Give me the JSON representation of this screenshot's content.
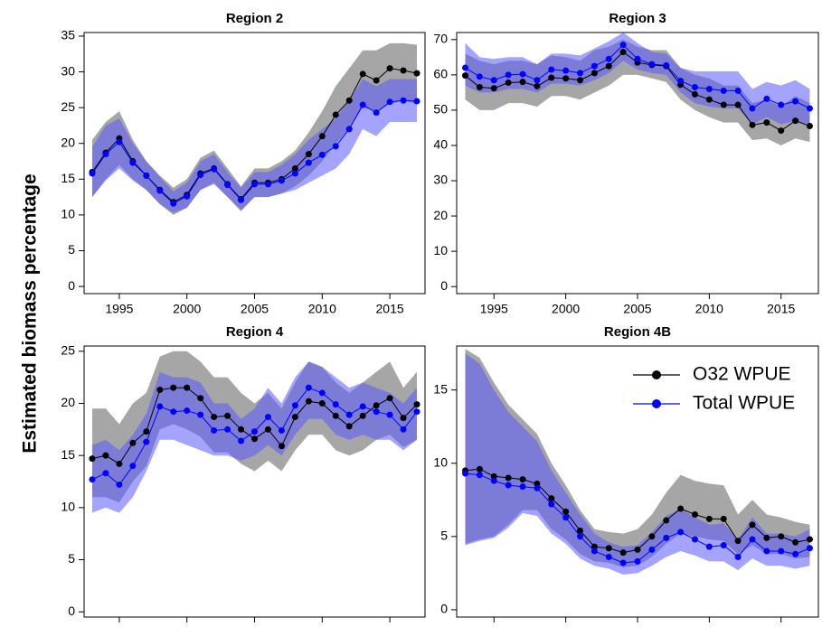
{
  "ylabel": "Estimated biomass percentage",
  "chart_data": [
    {
      "type": "line",
      "title": "Region 2",
      "x": [
        1993,
        1994,
        1995,
        1996,
        1997,
        1998,
        1999,
        2000,
        2001,
        2002,
        2003,
        2004,
        2005,
        2006,
        2007,
        2008,
        2009,
        2010,
        2011,
        2012,
        2013,
        2014,
        2015,
        2016,
        2017
      ],
      "xlim": [
        1992.4,
        2017.6
      ],
      "xticks": [
        1995,
        2000,
        2005,
        2010,
        2015
      ],
      "ylim": [
        -1,
        35.5
      ],
      "yticks": [
        0,
        5,
        10,
        15,
        20,
        25,
        30,
        35
      ],
      "series": [
        {
          "name": "O32 WPUE",
          "color": "#000000",
          "band_color": "#a6a6a6",
          "values": [
            16,
            18.7,
            20.7,
            17.5,
            15.5,
            13.5,
            11.8,
            12.8,
            15.8,
            16.5,
            14.3,
            12.2,
            14.5,
            14.5,
            15,
            16.5,
            18.5,
            21,
            24,
            26,
            29.7,
            28.8,
            30.5,
            30.2,
            29.8
          ],
          "lower": [
            12.5,
            15,
            17,
            15,
            13.5,
            11.5,
            10,
            11,
            13.5,
            14.5,
            12.5,
            10.5,
            12.5,
            12.5,
            13,
            14,
            15.5,
            17.5,
            20,
            22,
            25,
            24.5,
            25.5,
            26,
            25.5
          ],
          "upper": [
            20.5,
            23,
            24.5,
            20.5,
            17.5,
            15.5,
            13.8,
            15,
            18,
            19,
            16.5,
            14,
            16.5,
            16.5,
            17.5,
            19,
            21.5,
            24.5,
            28,
            30.5,
            33,
            33,
            34,
            34,
            33.8
          ]
        },
        {
          "name": "Total WPUE",
          "color": "#0000ff",
          "band_color": "#5a5aff",
          "values": [
            15.8,
            18.5,
            20.2,
            17.3,
            15.5,
            13.4,
            11.6,
            12.6,
            15.6,
            16.4,
            14.2,
            12.1,
            14.3,
            14.3,
            14.8,
            15.8,
            17.3,
            18.4,
            19.6,
            22,
            25.4,
            24.3,
            25.8,
            26,
            25.9
          ],
          "lower": [
            12.5,
            14.8,
            16.5,
            14.8,
            13.5,
            11.5,
            10.3,
            11,
            13.5,
            14.3,
            12.5,
            10.7,
            12.5,
            12.5,
            13,
            13.5,
            14.5,
            15.5,
            16.5,
            18.5,
            22,
            21,
            23,
            23,
            23
          ],
          "upper": [
            19.5,
            22.5,
            23.5,
            20,
            17.5,
            15.3,
            13.3,
            14.5,
            17.5,
            18.5,
            16,
            13.8,
            16,
            16,
            17,
            18.5,
            20.5,
            22,
            23.5,
            26,
            29,
            28,
            29,
            29,
            29
          ]
        }
      ]
    },
    {
      "type": "line",
      "title": "Region 3",
      "x": [
        1993,
        1994,
        1995,
        1996,
        1997,
        1998,
        1999,
        2000,
        2001,
        2002,
        2003,
        2004,
        2005,
        2006,
        2007,
        2008,
        2009,
        2010,
        2011,
        2012,
        2013,
        2014,
        2015,
        2016,
        2017
      ],
      "xlim": [
        1992.4,
        2017.6
      ],
      "xticks": [
        1995,
        2000,
        2005,
        2010,
        2015
      ],
      "ylim": [
        -2,
        72
      ],
      "yticks": [
        0,
        10,
        20,
        30,
        40,
        50,
        60,
        70
      ],
      "series": [
        {
          "name": "O32 WPUE",
          "color": "#000000",
          "band_color": "#a6a6a6",
          "values": [
            59.8,
            56.5,
            56.2,
            57.8,
            58,
            56.8,
            59.2,
            59,
            58.5,
            60.5,
            62.5,
            66.5,
            63.5,
            62.8,
            62.5,
            57.2,
            54.5,
            53,
            51.5,
            51.5,
            45.8,
            46.5,
            44.2,
            47,
            45.5
          ],
          "lower": [
            53,
            50,
            50,
            52,
            52,
            51,
            54,
            54,
            53,
            55,
            57,
            60,
            60,
            59,
            58,
            53,
            50,
            48,
            46.5,
            46.5,
            41.5,
            42,
            40,
            42,
            41
          ],
          "upper": [
            66,
            64,
            63,
            64,
            64,
            63,
            65.5,
            65,
            64,
            67,
            68,
            70,
            68,
            67,
            67,
            62,
            60,
            59,
            57,
            57,
            52,
            53,
            51,
            54,
            52
          ]
        },
        {
          "name": "Total WPUE",
          "color": "#0000ff",
          "band_color": "#5a5aff",
          "values": [
            62,
            59.5,
            58.5,
            60,
            60.2,
            58.5,
            61.5,
            61.2,
            60.5,
            62.5,
            64.5,
            68.5,
            64.5,
            63,
            62.7,
            58.3,
            56.5,
            56,
            55.5,
            55.5,
            50.5,
            53.2,
            51.5,
            52.5,
            50.5
          ],
          "lower": [
            57,
            55,
            55,
            56,
            56,
            55,
            57.5,
            57.5,
            57,
            58.5,
            60.5,
            64,
            61.5,
            60.5,
            60,
            55,
            52,
            51,
            50.5,
            50.5,
            46,
            48,
            46,
            47,
            46
          ],
          "upper": [
            69,
            65,
            64.5,
            65,
            65,
            63,
            66,
            66,
            65.5,
            67.5,
            69.5,
            72,
            69,
            66.5,
            66,
            62,
            61,
            61,
            61,
            61,
            56,
            58,
            57,
            58.5,
            56
          ]
        }
      ]
    },
    {
      "type": "line",
      "title": "Region 4",
      "x": [
        1993,
        1994,
        1995,
        1996,
        1997,
        1998,
        1999,
        2000,
        2001,
        2002,
        2003,
        2004,
        2005,
        2006,
        2007,
        2008,
        2009,
        2010,
        2011,
        2012,
        2013,
        2014,
        2015,
        2016,
        2017
      ],
      "xlim": [
        1992.4,
        2017.6
      ],
      "xticks": [
        1995,
        2000,
        2005,
        2010,
        2015
      ],
      "ylim": [
        -0.5,
        25.5
      ],
      "yticks": [
        0,
        5,
        10,
        15,
        20,
        25
      ],
      "series": [
        {
          "name": "O32 WPUE",
          "color": "#000000",
          "band_color": "#a6a6a6",
          "values": [
            14.7,
            15,
            14.2,
            16.2,
            17.3,
            21.3,
            21.5,
            21.5,
            20.5,
            18.7,
            18.8,
            17.5,
            16.6,
            17.5,
            15.9,
            18.7,
            20.2,
            20,
            18.8,
            17.8,
            18.8,
            19.8,
            20.5,
            18.6,
            19.9
          ],
          "lower": [
            11,
            11,
            10.5,
            12.5,
            14,
            17.5,
            18,
            17.5,
            16.8,
            15.3,
            15.3,
            14.2,
            13.5,
            14.5,
            13.5,
            15.5,
            17,
            17,
            15.5,
            15,
            15.5,
            16.5,
            17,
            15.8,
            16.5
          ],
          "upper": [
            19.5,
            19.5,
            18,
            20,
            21,
            24.5,
            25,
            25,
            24,
            22.5,
            22.5,
            21,
            20,
            21,
            19.5,
            22,
            24,
            23.5,
            22,
            21,
            22,
            23,
            24,
            21.5,
            23
          ]
        },
        {
          "name": "Total WPUE",
          "color": "#0000ff",
          "band_color": "#5a5aff",
          "values": [
            12.7,
            13.3,
            12.2,
            14,
            16.3,
            19.7,
            19.2,
            19.3,
            18.9,
            17.4,
            17.5,
            16.4,
            17.3,
            18.7,
            17.4,
            19.8,
            21.5,
            21,
            19.9,
            18.9,
            19.7,
            19.2,
            18.9,
            17.5,
            19.2
          ],
          "lower": [
            9.5,
            10,
            9.5,
            11,
            13.5,
            16.5,
            16.5,
            16,
            15.5,
            15,
            15,
            14.5,
            15,
            16,
            15,
            17,
            18.5,
            18.5,
            17,
            16.5,
            17,
            16.5,
            16.5,
            15.5,
            16.5
          ],
          "upper": [
            16,
            16.5,
            15.5,
            17,
            19,
            23,
            22.5,
            22.5,
            22,
            20,
            20,
            18.5,
            19.5,
            21.5,
            20,
            22.5,
            24,
            23.5,
            22.5,
            21.5,
            22,
            21.5,
            21,
            20,
            21.5
          ]
        }
      ]
    },
    {
      "type": "line",
      "title": "Region 4B",
      "legend": "upper right",
      "x": [
        1993,
        1994,
        1995,
        1996,
        1997,
        1998,
        1999,
        2000,
        2001,
        2002,
        2003,
        2004,
        2005,
        2006,
        2007,
        2008,
        2009,
        2010,
        2011,
        2012,
        2013,
        2014,
        2015,
        2016,
        2017
      ],
      "xlim": [
        1992.4,
        2017.6
      ],
      "xticks": [
        1995,
        2000,
        2005,
        2010,
        2015
      ],
      "ylim": [
        -0.5,
        18
      ],
      "yticks": [
        0,
        5,
        10,
        15
      ],
      "series": [
        {
          "name": "O32 WPUE",
          "color": "#000000",
          "band_color": "#a6a6a6",
          "values": [
            9.5,
            9.6,
            9.1,
            9,
            8.9,
            8.6,
            7.6,
            6.7,
            5.4,
            4.3,
            4.2,
            3.9,
            4.1,
            5,
            6.1,
            6.9,
            6.5,
            6.2,
            6.2,
            4.7,
            5.8,
            4.9,
            5,
            4.6,
            4.8
          ],
          "lower": [
            4.5,
            4.8,
            5,
            5.8,
            6.8,
            6.8,
            5.5,
            4.8,
            3.8,
            3.3,
            3.2,
            2.9,
            3,
            3.6,
            4.5,
            5.2,
            5,
            4.8,
            4.7,
            3.8,
            4.4,
            3.8,
            3.8,
            3.5,
            3.6
          ],
          "upper": [
            17.8,
            17.2,
            15.5,
            14,
            13,
            12,
            10,
            8.5,
            6.8,
            5.5,
            5.3,
            5.2,
            5.5,
            6.5,
            8,
            9.2,
            8.8,
            8.6,
            8.5,
            6.5,
            7.5,
            6.5,
            6.3,
            6,
            5.8
          ]
        },
        {
          "name": "Total WPUE",
          "color": "#0000ff",
          "band_color": "#5a5aff",
          "values": [
            9.3,
            9.2,
            8.8,
            8.5,
            8.4,
            8.3,
            7.2,
            6.3,
            5,
            4,
            3.6,
            3.2,
            3.3,
            4.1,
            4.9,
            5.3,
            4.8,
            4.3,
            4.4,
            3.6,
            4.8,
            4,
            4,
            3.8,
            4.2
          ],
          "lower": [
            4.4,
            4.7,
            4.9,
            5.6,
            6.6,
            6.4,
            5.2,
            4.5,
            3.5,
            3,
            2.8,
            2.4,
            2.5,
            3,
            3.6,
            4,
            3.7,
            3.3,
            3.3,
            2.7,
            3.5,
            3,
            3,
            2.8,
            3
          ],
          "upper": [
            17.5,
            16.8,
            15,
            13.5,
            12.5,
            11.5,
            9.5,
            8,
            6.5,
            5.2,
            4.6,
            4.3,
            4.4,
            5.3,
            6.4,
            6.9,
            6.3,
            5.8,
            5.9,
            4.8,
            6.3,
            5.2,
            5.2,
            5,
            5.5
          ]
        }
      ]
    }
  ]
}
